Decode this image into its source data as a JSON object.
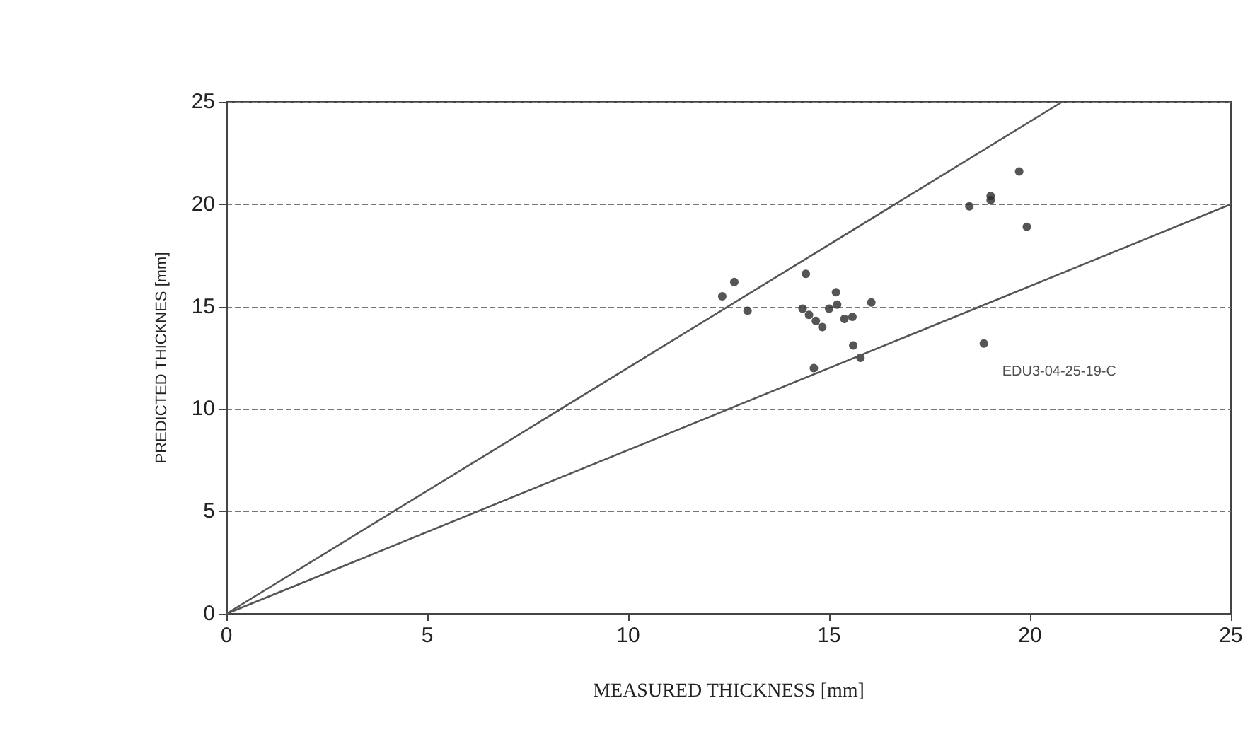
{
  "chart_data": {
    "type": "scatter",
    "xlabel": "MEASURED THICKNESS [mm]",
    "ylabel": "PREDICTED THICKNES [mm]",
    "xlim": [
      0,
      25
    ],
    "ylim": [
      0,
      25
    ],
    "xticks": [
      0,
      5,
      10,
      15,
      20,
      25
    ],
    "yticks": [
      0,
      5,
      10,
      15,
      20,
      25
    ],
    "grid": "y",
    "marker": "circle",
    "series": [
      {
        "color": "#2a2a2a",
        "x": [
          12.34,
          12.64,
          12.97,
          14.42,
          14.34,
          14.5,
          14.67,
          14.83,
          15.0,
          15.17,
          15.2,
          15.38,
          15.58,
          16.05,
          15.6,
          15.78,
          14.62,
          18.49,
          19.02,
          19.02,
          19.73,
          19.92,
          18.85
        ],
        "values": [
          15.5,
          16.2,
          14.8,
          16.6,
          14.9,
          14.6,
          14.3,
          14.0,
          14.9,
          15.7,
          15.1,
          14.4,
          14.5,
          15.2,
          13.1,
          12.5,
          12.0,
          19.9,
          20.2,
          20.4,
          21.6,
          18.9,
          13.2
        ]
      },
      {
        "type": "line",
        "color": "#555555",
        "marker": "none",
        "line_style": "solid",
        "x": [
          0,
          20.8
        ],
        "values": [
          0,
          25
        ]
      },
      {
        "type": "line",
        "color": "#555555",
        "marker": "none",
        "line_style": "solid",
        "x": [
          0,
          25
        ],
        "values": [
          0,
          20
        ]
      }
    ],
    "annotations": [
      {
        "text": "EDU3-04-25-19-C",
        "x": 18.85,
        "y": 13.2
      }
    ]
  }
}
